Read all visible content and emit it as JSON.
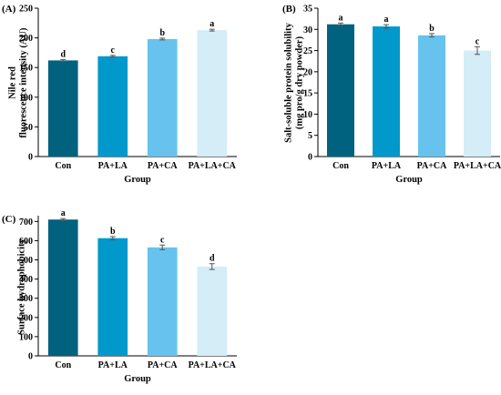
{
  "colors": {
    "bars": [
      "#00627f",
      "#0199cb",
      "#67c3ed",
      "#d4edf7"
    ],
    "axis": "#000000",
    "errorbar": "#555555"
  },
  "chart_data": [
    {
      "panel_label": "(A)",
      "type": "bar",
      "categories": [
        "Con",
        "PA+LA",
        "PA+CA",
        "PA+LA+CA"
      ],
      "values": [
        162,
        169,
        198,
        213
      ],
      "errors": [
        1.5,
        1.5,
        1.5,
        1.5
      ],
      "significance": [
        "d",
        "c",
        "b",
        "a"
      ],
      "xlabel": "Group",
      "ylabel_lines": [
        "Nile red",
        "fluorescence intensity (AU)"
      ],
      "ylim": [
        0,
        250
      ],
      "yticks": [
        0,
        50,
        100,
        150,
        200,
        250
      ]
    },
    {
      "panel_label": "(B)",
      "type": "bar",
      "categories": [
        "Con",
        "PA+LA",
        "PA+CA",
        "PA+LA+CA"
      ],
      "values": [
        31.2,
        30.7,
        28.6,
        25.0
      ],
      "errors": [
        0.3,
        0.4,
        0.4,
        0.9
      ],
      "significance": [
        "a",
        "a",
        "b",
        "c"
      ],
      "xlabel": "Group",
      "ylabel_lines": [
        "Salt-soluble protein solubility",
        "(mg pro/g dry powder)"
      ],
      "ylim": [
        0,
        35
      ],
      "yticks": [
        0,
        5,
        10,
        15,
        20,
        25,
        30,
        35
      ]
    },
    {
      "panel_label": "(C)",
      "type": "bar",
      "categories": [
        "Con",
        "PA+LA",
        "PA+CA",
        "PA+LA+CA"
      ],
      "values": [
        710,
        613,
        565,
        465
      ],
      "errors": [
        5,
        8,
        12,
        15
      ],
      "significance": [
        "a",
        "b",
        "c",
        "d"
      ],
      "xlabel": "Group",
      "ylabel_lines": [
        "Surface hydrophobicity"
      ],
      "ylim": [
        0,
        730
      ],
      "yticks": [
        0,
        100,
        200,
        300,
        400,
        500,
        600,
        700
      ]
    }
  ]
}
